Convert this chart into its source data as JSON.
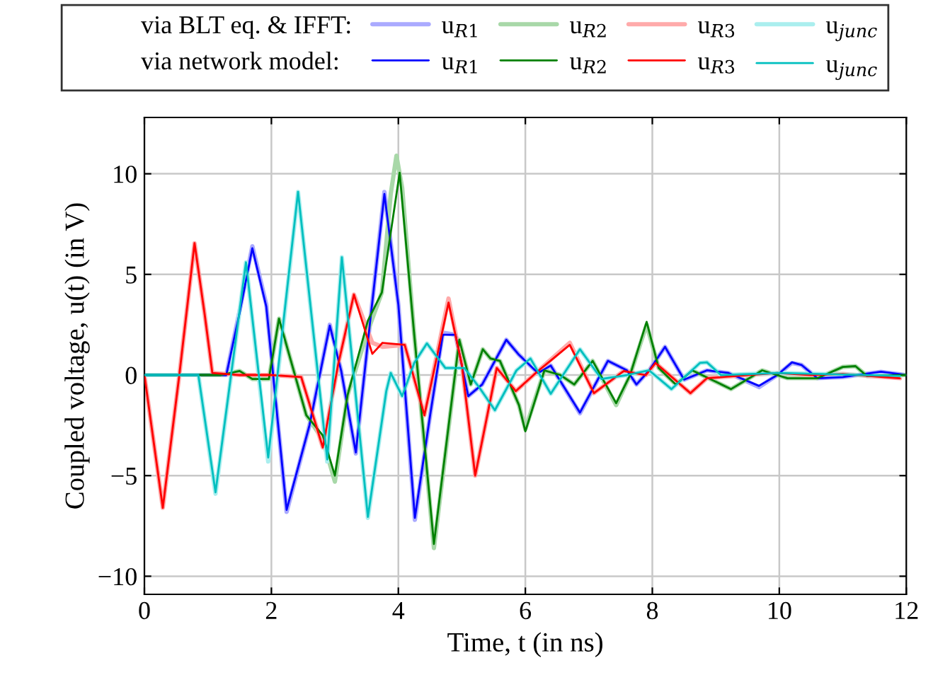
{
  "chart_data": {
    "type": "line",
    "xlabel": "Time, t (in ns)",
    "ylabel": "Coupled voltage, u(t) (in V)",
    "annotations": [
      "via BLT eq. & IFFT:",
      "via network model:"
    ],
    "xlim": [
      0,
      12
    ],
    "xticks": [
      0,
      2,
      4,
      6,
      8,
      10,
      12
    ],
    "ylim": [
      -10.9,
      12.8
    ],
    "yticks": [
      {
        "value": -10,
        "label": "−10"
      },
      {
        "value": -5,
        "label": "−5"
      },
      0,
      5,
      10
    ],
    "grid": true,
    "legend": "top",
    "line_style": "solid",
    "marker": "none",
    "series": [
      {
        "name": "u$_{R1}$",
        "color": "#aaaaff",
        "x": [
          0,
          1.29,
          1.5,
          1.7,
          1.92,
          2.24,
          2.6,
          2.92,
          3.1,
          3.33,
          3.55,
          3.78,
          4.0,
          4.26,
          4.5,
          4.7,
          4.9,
          5.1,
          5.32,
          5.7,
          5.9,
          6.2,
          6.4,
          6.86,
          7.3,
          7.6,
          7.75,
          7.95,
          8.2,
          8.5,
          8.86,
          9.2,
          9.68,
          9.97,
          10.2,
          10.35,
          10.6,
          11.0,
          11.6,
          12
        ],
        "values": [
          0,
          0,
          3.2,
          6.4,
          3.5,
          -6.8,
          -2.5,
          2.5,
          0.2,
          -3.9,
          2.5,
          9.1,
          3.5,
          -7.2,
          -2.0,
          2.1,
          2.0,
          -1.05,
          -0.47,
          1.75,
          1.0,
          0.1,
          0.47,
          -1.9,
          0.7,
          0.23,
          -0.47,
          0.23,
          1.4,
          -0.23,
          0.23,
          0.1,
          -0.6,
          0.0,
          0.6,
          0.5,
          -0.16,
          -0.1,
          0.16,
          0
        ]
      },
      {
        "name": "u$_{R2}$",
        "color": "#a8d8a8",
        "x": [
          0,
          1.2,
          1.5,
          1.7,
          1.96,
          2.12,
          2.55,
          2.81,
          3.0,
          3.2,
          3.52,
          3.74,
          3.88,
          3.97,
          4.06,
          4.25,
          4.56,
          4.96,
          5.14,
          5.33,
          5.45,
          5.6,
          5.9,
          6.0,
          6.3,
          6.55,
          6.77,
          7.06,
          7.43,
          7.65,
          7.91,
          8.1,
          8.37,
          8.63,
          9.24,
          9.73,
          10.13,
          10.6,
          11.0,
          11.2,
          11.38,
          12
        ],
        "values": [
          0,
          0,
          0.2,
          -0.2,
          -0.2,
          2.8,
          -2.0,
          -3.2,
          -5.3,
          -1.0,
          2.2,
          4.1,
          9.0,
          10.9,
          9.3,
          2.0,
          -8.6,
          1.75,
          -0.47,
          1.28,
          0.82,
          0.7,
          -1.5,
          -2.7,
          0.23,
          0.0,
          -0.47,
          0.7,
          -1.5,
          0.0,
          2.5,
          0.35,
          -0.47,
          0.23,
          -0.7,
          0.23,
          -0.16,
          -0.16,
          0.4,
          0.44,
          -0.05,
          0
        ]
      },
      {
        "name": "u$_{R3}$",
        "color": "#ffaaaa",
        "x": [
          0,
          0.29,
          0.55,
          0.79,
          0.95,
          1.07,
          1.5,
          2.0,
          2.47,
          2.81,
          3.05,
          3.3,
          3.59,
          3.75,
          4.1,
          4.41,
          4.79,
          5.0,
          5.21,
          5.55,
          5.85,
          6.2,
          6.7,
          7.08,
          7.55,
          7.9,
          8.05,
          8.6,
          8.86,
          9.5,
          9.97,
          10.5,
          11.0,
          11.9
        ],
        "values": [
          0,
          -6.6,
          0,
          6.55,
          3.0,
          0.1,
          0,
          0,
          -0.1,
          -3.6,
          0.5,
          4.0,
          1.6,
          1.4,
          1.5,
          -2.0,
          3.8,
          0.5,
          -5.0,
          0.35,
          -0.8,
          0.2,
          1.6,
          -0.9,
          0.2,
          0.0,
          0.6,
          -0.9,
          -0.16,
          0.0,
          0.1,
          0.0,
          0.05,
          -0.16
        ]
      },
      {
        "name": "u$_{junc}$",
        "color": "#aaeeee",
        "x": [
          0,
          0.85,
          1.12,
          1.6,
          1.95,
          2.42,
          2.88,
          3.11,
          3.52,
          3.81,
          3.88,
          4.06,
          4.25,
          4.45,
          4.74,
          5.04,
          5.27,
          5.52,
          5.86,
          6.08,
          6.4,
          6.86,
          7.2,
          7.6,
          7.95,
          8.3,
          8.75,
          8.86,
          9.08,
          10.0,
          11.9
        ],
        "values": [
          0,
          0,
          -5.9,
          5.6,
          -4.3,
          9.1,
          -4.3,
          5.85,
          -7.1,
          -0.8,
          0.1,
          -1.05,
          0.6,
          1.57,
          0.35,
          0.35,
          -0.6,
          -1.75,
          0.23,
          0.82,
          -0.93,
          1.28,
          -0.2,
          0.0,
          0.23,
          -0.7,
          0.6,
          0.63,
          0.0,
          0.1,
          -0.05
        ]
      },
      {
        "name": "u$_{R1}$",
        "color": "#0000ff",
        "x": [
          0,
          1.29,
          1.5,
          1.7,
          1.92,
          2.24,
          2.6,
          2.92,
          3.1,
          3.33,
          3.55,
          3.78,
          4.0,
          4.26,
          4.5,
          4.7,
          4.9,
          5.1,
          5.32,
          5.7,
          5.9,
          6.2,
          6.4,
          6.86,
          7.3,
          7.6,
          7.75,
          7.95,
          8.2,
          8.5,
          8.86,
          9.2,
          9.68,
          9.97,
          10.2,
          10.35,
          10.6,
          11.0,
          11.6,
          12
        ],
        "values": [
          0,
          0,
          3.1,
          6.3,
          3.4,
          -6.7,
          -2.5,
          2.46,
          0.2,
          -3.85,
          2.5,
          9.0,
          3.5,
          -7.1,
          -2.0,
          2.0,
          2.0,
          -1.05,
          -0.47,
          1.75,
          1.0,
          0.1,
          0.47,
          -1.87,
          0.7,
          0.23,
          -0.47,
          0.23,
          1.4,
          -0.23,
          0.23,
          0.1,
          -0.54,
          0.0,
          0.63,
          0.5,
          -0.16,
          -0.1,
          0.16,
          0
        ]
      },
      {
        "name": "u$_{R2}$",
        "color": "#008000",
        "x": [
          0,
          1.2,
          1.5,
          1.7,
          1.96,
          2.12,
          2.55,
          2.81,
          3.0,
          3.2,
          3.52,
          3.74,
          4.02,
          4.25,
          4.56,
          4.96,
          5.14,
          5.33,
          5.45,
          5.6,
          5.9,
          6.0,
          6.3,
          6.55,
          6.77,
          7.06,
          7.43,
          7.65,
          7.91,
          8.1,
          8.37,
          8.63,
          9.24,
          9.73,
          10.13,
          10.6,
          11.0,
          11.2,
          11.38,
          12
        ],
        "values": [
          0,
          0,
          0.2,
          -0.2,
          -0.2,
          2.8,
          -2.0,
          -3.0,
          -5.0,
          -1.0,
          2.7,
          4.1,
          10.05,
          2.0,
          -8.4,
          1.75,
          -0.47,
          1.28,
          0.82,
          0.7,
          -1.5,
          -2.8,
          0.23,
          0.0,
          -0.47,
          0.7,
          -1.4,
          0.0,
          2.64,
          0.35,
          -0.47,
          0.23,
          -0.7,
          0.23,
          -0.16,
          -0.16,
          0.4,
          0.44,
          -0.05,
          0
        ]
      },
      {
        "name": "u$_{R3}$",
        "color": "#ff0000",
        "x": [
          0,
          0.29,
          0.55,
          0.79,
          0.95,
          1.07,
          1.5,
          2.0,
          2.47,
          2.81,
          3.05,
          3.3,
          3.59,
          3.75,
          4.1,
          4.41,
          4.79,
          5.0,
          5.21,
          5.55,
          5.85,
          6.2,
          6.7,
          7.08,
          7.55,
          7.9,
          8.05,
          8.6,
          8.86,
          9.5,
          9.97,
          10.5,
          11.0,
          11.9
        ],
        "values": [
          0,
          -6.6,
          0,
          6.55,
          3.0,
          0.1,
          0,
          0,
          -0.1,
          -3.6,
          0.5,
          4.0,
          1.05,
          1.6,
          1.5,
          -2.0,
          3.6,
          0.5,
          -5.0,
          0.35,
          -0.8,
          0.2,
          1.5,
          -0.9,
          0.2,
          0.0,
          0.6,
          -0.9,
          -0.16,
          0.0,
          0.1,
          0.0,
          0.05,
          -0.16
        ]
      },
      {
        "name": "u$_{junc}$",
        "color": "#00bfbf",
        "x": [
          0,
          0.85,
          1.12,
          1.6,
          1.95,
          2.42,
          2.88,
          3.11,
          3.52,
          3.81,
          3.88,
          4.06,
          4.25,
          4.45,
          4.74,
          5.04,
          5.27,
          5.52,
          5.86,
          6.08,
          6.4,
          6.86,
          7.2,
          7.6,
          7.95,
          8.3,
          8.75,
          8.86,
          9.08,
          10.0,
          11.9
        ],
        "values": [
          0,
          0,
          -5.83,
          5.6,
          -4.1,
          9.1,
          -4.2,
          5.85,
          -7.05,
          -0.8,
          0.1,
          -1.05,
          0.6,
          1.57,
          0.35,
          0.35,
          -0.6,
          -1.75,
          0.23,
          0.82,
          -0.93,
          1.28,
          -0.2,
          0.0,
          0.23,
          -0.7,
          0.6,
          0.63,
          0.0,
          0.1,
          -0.05
        ]
      }
    ]
  }
}
